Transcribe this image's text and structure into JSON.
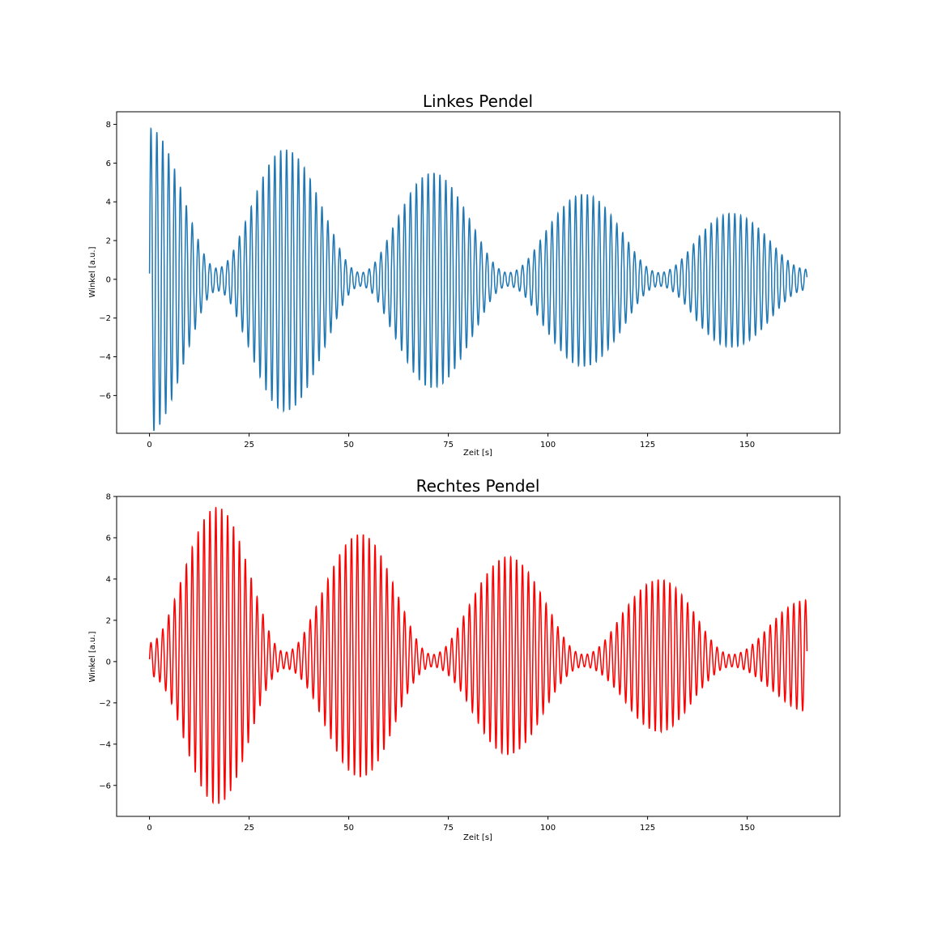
{
  "chart_data": [
    {
      "type": "line",
      "title": "Linkes Pendel",
      "xlabel": "Zeit [s]",
      "ylabel": "Winkel [a.u.]",
      "xlim": [
        -8.25,
        173.25
      ],
      "ylim": [
        -7.95,
        8.65
      ],
      "xticks": [
        0,
        25,
        50,
        75,
        100,
        125,
        150
      ],
      "yticks": [
        -6,
        -4,
        -2,
        0,
        2,
        4,
        6,
        8
      ],
      "xtick_labels": [
        "0",
        "25",
        "50",
        "75",
        "100",
        "125",
        "150"
      ],
      "ytick_labels": [
        "−6",
        "−4",
        "−2",
        "0",
        "2",
        "4",
        "6",
        "8"
      ],
      "grid": false,
      "color": "#1f77b4",
      "series": [
        {
          "x_range": [
            0,
            165
          ],
          "period_s": 1.48,
          "center_offset": [
            0.6,
            -0.8
          ],
          "amplitude_envelope": {
            "t": [
              0,
              17,
              34,
              53,
              71,
              90,
              109,
              128,
              146,
              165
            ],
            "amp": [
              7.5,
              0.5,
              6.4,
              0.3,
              5.2,
              0.3,
              4.1,
              0.3,
              3.1,
              0.45
            ]
          }
        }
      ]
    },
    {
      "type": "line",
      "title": "Rechtes Pendel",
      "xlabel": "Zeit [s]",
      "ylabel": "Winkel [a.u.]",
      "xlim": [
        -8.25,
        173.25
      ],
      "ylim": [
        -7.5,
        8.0
      ],
      "xticks": [
        0,
        25,
        50,
        75,
        100,
        125,
        150
      ],
      "yticks": [
        -6,
        -4,
        -2,
        0,
        2,
        4,
        6,
        8
      ],
      "xtick_labels": [
        "0",
        "25",
        "50",
        "75",
        "100",
        "125",
        "150"
      ],
      "ytick_labels": [
        "−6",
        "−4",
        "−2",
        "0",
        "2",
        "4",
        "6",
        "8"
      ],
      "grid": false,
      "color": "#ff0000",
      "series": [
        {
          "x_range": [
            0,
            165
          ],
          "period_s": 1.48,
          "center_offset": [
            0.55,
            0.6
          ],
          "amplitude_envelope": {
            "t": [
              0,
              17,
              34,
              53,
              71,
              90,
              109,
              128,
              146,
              165
            ],
            "amp": [
              0.8,
              7.2,
              0.4,
              5.9,
              0.3,
              4.8,
              0.3,
              3.7,
              0.3,
              2.7
            ]
          }
        }
      ]
    }
  ]
}
